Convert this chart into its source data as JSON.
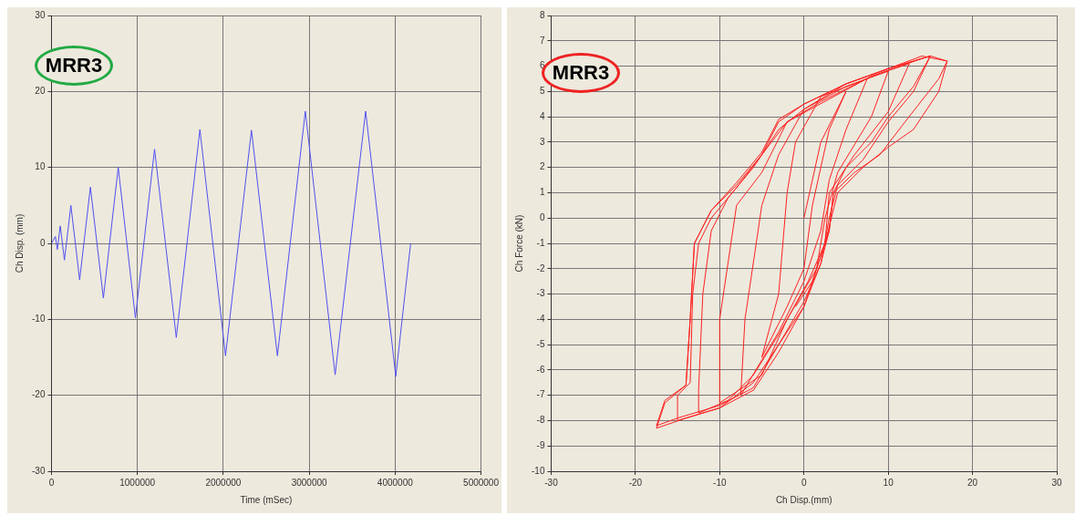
{
  "chart_data": [
    {
      "type": "line",
      "xlabel": "Time (mSec)",
      "ylabel": "Ch Disp. (mm)",
      "annotations": [
        "MRR3"
      ],
      "color": "#5050f0",
      "marker": "none",
      "grid": true,
      "legend": false,
      "xlim": [
        0,
        5000000
      ],
      "xticks": [
        0,
        1000000,
        2000000,
        3000000,
        4000000,
        5000000
      ],
      "ylim": [
        -30,
        30
      ],
      "yticks": [
        -30,
        -20,
        -10,
        0,
        10,
        20,
        30
      ],
      "x": [
        0,
        45000,
        68000,
        102000,
        151000,
        226000,
        328000,
        453000,
        604000,
        777000,
        977000,
        1200000,
        1453000,
        1728000,
        2026000,
        2328000,
        2630000,
        2955000,
        3302000,
        3657000,
        4008000,
        4181000
      ],
      "values": [
        0,
        0.9,
        -0.8,
        2.3,
        -2.2,
        5,
        -4.8,
        7.4,
        -7.2,
        10,
        -9.8,
        12.4,
        -12.4,
        15,
        -14.8,
        14.9,
        -14.8,
        17.4,
        -17.3,
        17.4,
        -17.5,
        0
      ]
    },
    {
      "type": "line",
      "xlabel": "Ch Disp.(mm)",
      "ylabel": "Ch Force (kN)",
      "annotations": [
        "MRR3"
      ],
      "color": "#ff2020",
      "marker": "none",
      "grid": true,
      "legend": false,
      "xlim": [
        -30,
        30
      ],
      "xticks": [
        -30,
        -20,
        -10,
        0,
        10,
        20,
        30
      ],
      "ylim": [
        -10,
        8
      ],
      "yticks": [
        -10,
        -9,
        -8,
        -7,
        -6,
        -5,
        -4,
        -3,
        -2,
        -1,
        0,
        1,
        2,
        3,
        4,
        5,
        6,
        7,
        8
      ],
      "x": [
        0,
        2,
        5,
        3,
        1,
        0,
        -2,
        -5,
        -3,
        -2,
        -1,
        2,
        7.5,
        5,
        3,
        2,
        0,
        -3,
        -7.5,
        -7,
        -5,
        -3,
        0,
        5,
        10,
        8,
        4,
        2.5,
        1.5,
        -2,
        -5,
        -10,
        -10,
        -8,
        -5,
        -2,
        3,
        8,
        12.5,
        10,
        6,
        3,
        2.5,
        0.5,
        -3,
        -6,
        -9,
        -12.5,
        -12.5,
        -12,
        -11,
        -9,
        -6,
        -3,
        0,
        5,
        10,
        15,
        13,
        10,
        7,
        4,
        3,
        2,
        0,
        -3,
        -6,
        -10,
        -15,
        -15,
        -13.5,
        -13.2,
        -12.5,
        -11,
        -8,
        -5,
        -2,
        2,
        8,
        14,
        15,
        13,
        10,
        8,
        5,
        3.5,
        3,
        1.5,
        0,
        -3,
        -6,
        -10,
        -15,
        -17.5,
        -16.5,
        -14,
        -13.5,
        -13,
        -11,
        -8,
        -5,
        -3,
        0,
        5,
        10,
        14,
        17,
        16,
        12,
        9,
        6,
        3.5,
        3,
        2,
        0,
        -3,
        -6,
        -10,
        -14,
        -17.5,
        -16.5,
        -14,
        -13.5,
        -13,
        -11,
        -8,
        -5,
        -3,
        0,
        5,
        10,
        15,
        17,
        16,
        13,
        10,
        7,
        4,
        2.5,
        1,
        -1
      ],
      "values": [
        0,
        3,
        5,
        3.5,
        0.5,
        -2,
        -3.5,
        -5.5,
        -3,
        1,
        3,
        4.8,
        5.5,
        3.5,
        1.5,
        -0.5,
        -2.5,
        -4.5,
        -7,
        -4,
        0.5,
        2.5,
        4.3,
        5.2,
        5.8,
        4,
        1.8,
        0,
        -2,
        -4,
        -6.2,
        -7.3,
        -4,
        0.5,
        1.8,
        3.8,
        4.7,
        5.6,
        6.1,
        4.2,
        2.5,
        1,
        -1,
        -2.5,
        -4.6,
        -6.2,
        -7.2,
        -7.7,
        -6.8,
        -3,
        -0.5,
        0.8,
        2,
        3.5,
        4.3,
        5.3,
        5.9,
        6.4,
        5,
        3.8,
        2.3,
        1.3,
        0,
        -1.8,
        -3.3,
        -5,
        -6.5,
        -7.5,
        -8,
        -7,
        -6.5,
        -3,
        -1,
        0,
        1.2,
        2.5,
        3.8,
        4.6,
        5.6,
        6.3,
        6.4,
        5.2,
        4,
        3,
        2,
        1,
        -0.5,
        -2,
        -3.5,
        -5,
        -6.7,
        -7.4,
        -7.9,
        -8.2,
        -7.2,
        -6.6,
        -4,
        -1,
        0.3,
        1.3,
        2.5,
        3.8,
        4.5,
        5.3,
        5.9,
        6.4,
        6.2,
        5.5,
        3.8,
        2.5,
        1.8,
        1,
        -0.5,
        -1.8,
        -3.5,
        -5.3,
        -6.8,
        -7.5,
        -7.9,
        -8.3,
        -7.3,
        -6.6,
        -4,
        -1,
        0.3,
        1.4,
        2.6,
        3.9,
        4.5,
        5.3,
        5.9,
        6.4,
        6.2,
        5,
        3.5,
        2.8,
        2,
        1,
        -1,
        -2.5,
        -3.5
      ]
    }
  ]
}
